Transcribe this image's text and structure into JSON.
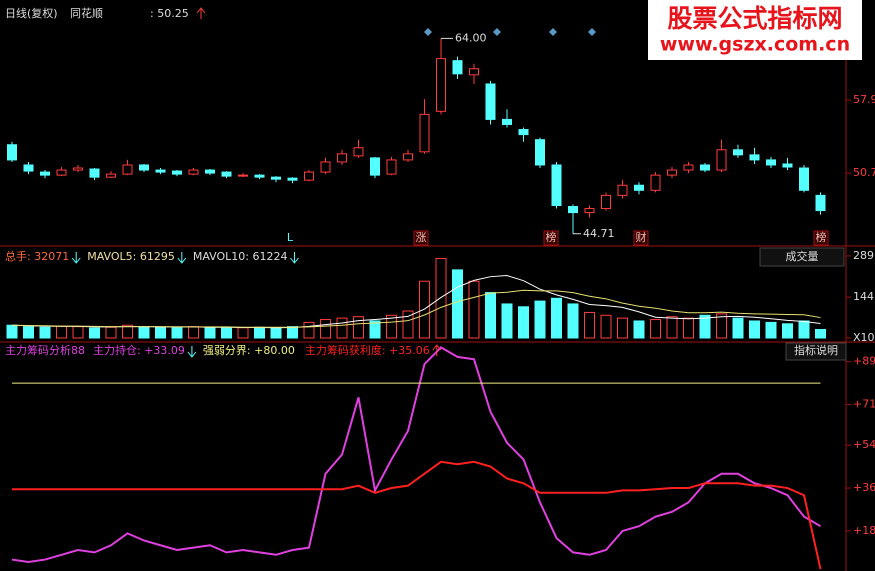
{
  "header": {
    "period": "日线(复权)",
    "name": "同花顺",
    "price_label": ": 50.25"
  },
  "watermark": {
    "title": "股票公式指标网",
    "url": "www.gszx.com.cn"
  },
  "buttons": [
    "成交量",
    "指标说明"
  ],
  "chart_data": [
    {
      "type": "candlestick",
      "up_color": "#ff3c3c",
      "down_color": "#54ffff",
      "open": [
        53.5,
        51.5,
        50.8,
        50.5,
        51.0,
        51.1,
        50.3,
        50.6,
        51.5,
        51.0,
        50.9,
        50.6,
        51.0,
        50.8,
        50.4,
        50.5,
        50.3,
        50.2,
        50.0,
        50.8,
        51.8,
        52.4,
        52.2,
        50.6,
        52.0,
        52.8,
        56.8,
        61.8,
        60.4,
        59.5,
        56.0,
        55.0,
        54.0,
        51.5,
        47.4,
        46.8,
        47.2,
        48.5,
        49.5,
        49.0,
        50.5,
        51.0,
        51.5,
        51.0,
        53.0,
        52.5,
        52.0,
        51.6,
        51.2,
        48.5
      ],
      "high": [
        53.8,
        51.8,
        51.0,
        51.3,
        51.5,
        51.2,
        50.9,
        52.0,
        51.6,
        51.2,
        51.0,
        51.2,
        51.1,
        50.9,
        50.7,
        50.6,
        50.4,
        50.3,
        51.0,
        52.2,
        53.0,
        54.0,
        52.3,
        52.3,
        53.0,
        58.0,
        64.0,
        62.2,
        61.5,
        59.8,
        57.0,
        55.2,
        54.2,
        51.8,
        47.6,
        47.5,
        48.8,
        50.0,
        49.8,
        50.8,
        51.3,
        51.8,
        51.7,
        54.0,
        53.5,
        53.2,
        52.3,
        52.2,
        51.5,
        48.8
      ],
      "low": [
        51.8,
        50.6,
        50.2,
        50.4,
        50.8,
        50.0,
        50.2,
        50.5,
        50.8,
        50.6,
        50.4,
        50.5,
        50.5,
        50.2,
        50.3,
        50.1,
        49.8,
        49.7,
        49.9,
        50.6,
        51.5,
        52.2,
        50.2,
        50.5,
        51.8,
        52.6,
        56.5,
        60.0,
        59.5,
        55.5,
        55.2,
        53.8,
        51.2,
        47.2,
        44.71,
        46.3,
        47.0,
        48.2,
        48.6,
        48.8,
        50.2,
        50.7,
        50.8,
        50.8,
        52.2,
        51.6,
        51.2,
        51.0,
        48.8,
        46.6
      ],
      "close": [
        52.0,
        50.9,
        50.5,
        51.0,
        51.2,
        50.3,
        50.6,
        51.5,
        51.0,
        50.8,
        50.6,
        51.0,
        50.7,
        50.4,
        50.5,
        50.3,
        50.1,
        50.0,
        50.8,
        51.8,
        52.6,
        53.2,
        50.5,
        52.0,
        52.6,
        56.5,
        62.0,
        60.5,
        61.0,
        56.0,
        55.5,
        54.5,
        51.5,
        47.5,
        46.8,
        47.2,
        48.5,
        49.5,
        49.0,
        50.5,
        51.0,
        51.5,
        51.0,
        53.0,
        52.5,
        52.0,
        51.5,
        51.3,
        49.0,
        47.0
      ],
      "ylim": [
        43.6,
        67.0
      ],
      "yticks": [
        50.7,
        57.9
      ],
      "annotations": [
        "64.00",
        "44.71"
      ],
      "markers": [
        "L",
        "涨",
        "榜",
        "财",
        "榜"
      ]
    },
    {
      "type": "bar",
      "legend": [
        "总手: 32071",
        "MAVOL5: 61295",
        "MAVOL10: 61224"
      ],
      "values": [
        45,
        40,
        38,
        42,
        40,
        35,
        38,
        45,
        40,
        38,
        36,
        40,
        38,
        35,
        36,
        38,
        35,
        40,
        55,
        65,
        70,
        75,
        60,
        80,
        95,
        200,
        280,
        240,
        200,
        160,
        120,
        110,
        130,
        140,
        120,
        90,
        80,
        70,
        60,
        65,
        75,
        70,
        80,
        85,
        70,
        60,
        55,
        50,
        60,
        30
      ],
      "series": [
        {
          "name": "MAVOL5",
          "color": "#ffffff",
          "values": [
            45,
            43,
            42,
            41,
            41,
            39,
            39,
            40,
            40,
            39,
            39,
            39,
            38,
            38,
            37,
            37,
            36,
            37,
            41,
            47,
            53,
            61,
            65,
            70,
            76,
            102,
            143,
            179,
            203,
            216,
            220,
            202,
            172,
            152,
            136,
            118,
            114,
            108,
            92,
            73,
            70,
            68,
            70,
            75,
            76,
            73,
            68,
            62,
            58,
            51
          ]
        },
        {
          "name": "MAVOL10",
          "color": "#e8e070",
          "values": [
            45,
            44,
            43,
            42,
            42,
            41,
            40,
            40,
            40,
            40,
            39,
            39,
            39,
            39,
            38,
            38,
            38,
            38,
            39,
            42,
            45,
            50,
            53,
            56,
            61,
            81,
            108,
            128,
            143,
            158,
            161,
            168,
            166,
            166,
            160,
            147,
            138,
            123,
            112,
            105,
            95,
            89,
            89,
            91,
            87,
            85,
            84,
            83,
            82,
            72
          ]
        }
      ],
      "ylim": [
        0,
        310
      ],
      "yticks": [
        {
          "value": 0,
          "label": "X10"
        },
        144,
        289
      ]
    },
    {
      "type": "line",
      "title": "主力筹码分析88",
      "series": [
        {
          "name": "主力持仓: +33.09",
          "color": "#e040e0",
          "values": [
            6,
            5,
            6,
            8,
            10,
            9,
            12,
            17,
            14,
            12,
            10,
            11,
            12,
            9,
            10,
            9,
            8,
            10,
            11,
            42,
            50,
            74,
            35,
            48,
            60,
            88,
            95,
            91,
            90,
            68,
            55,
            48,
            30,
            15,
            9,
            8,
            10,
            18,
            20,
            24,
            26,
            30,
            38,
            42,
            42,
            38,
            36,
            33,
            24,
            20
          ]
        },
        {
          "name": "强弱分界: +80.00",
          "color": "#f0f080",
          "values": [
            80,
            80,
            80,
            80,
            80,
            80,
            80,
            80,
            80,
            80,
            80,
            80,
            80,
            80,
            80,
            80,
            80,
            80,
            80,
            80,
            80,
            80,
            80,
            80,
            80,
            80,
            80,
            80,
            80,
            80,
            80,
            80,
            80,
            80,
            80,
            80,
            80,
            80,
            80,
            80,
            80,
            80,
            80,
            80,
            80,
            80,
            80,
            80,
            80,
            80
          ]
        },
        {
          "name": "主力筹码获利度: +35.06",
          "color": "#ff2020",
          "values": [
            35.5,
            35.5,
            35.5,
            35.5,
            35.5,
            35.5,
            35.5,
            35.5,
            35.5,
            35.5,
            35.5,
            35.5,
            35.5,
            35.5,
            35.5,
            35.5,
            35.5,
            35.5,
            35.5,
            35.5,
            35.5,
            37,
            34,
            36,
            37,
            42,
            47,
            46,
            47,
            45,
            40,
            38,
            34,
            34,
            34,
            34,
            34,
            35,
            35,
            35.5,
            36,
            36,
            38,
            38,
            38,
            37,
            37,
            36,
            33,
            2
          ]
        }
      ],
      "ylim": [
        1.2,
        96
      ],
      "yticks": [
        {
          "value": 89,
          "label": "+89"
        },
        {
          "value": 71,
          "label": "+71"
        },
        {
          "value": 54,
          "label": "+54"
        },
        {
          "value": 36,
          "label": "+36"
        },
        {
          "value": 18,
          "label": "+18"
        }
      ]
    }
  ]
}
